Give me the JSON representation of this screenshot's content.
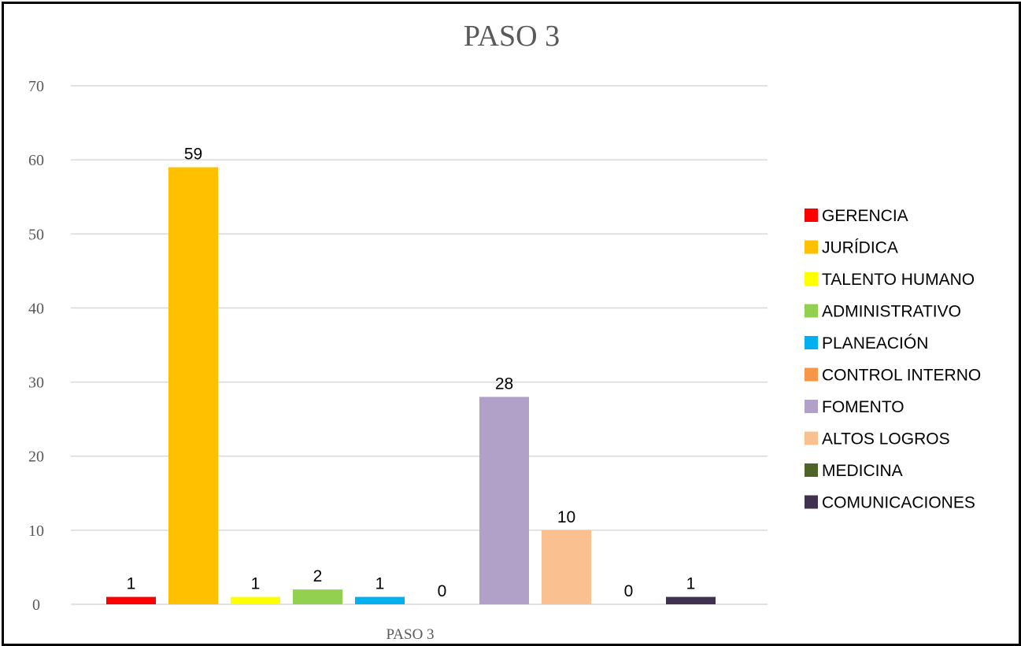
{
  "chart_data": {
    "type": "bar",
    "title": "PASO 3",
    "xlabel": "",
    "ylabel": "",
    "ylim": [
      0,
      70
    ],
    "yticks": [
      0,
      10,
      20,
      30,
      40,
      50,
      60,
      70
    ],
    "grid": true,
    "legend_position": "right",
    "category_label": "PASO 3",
    "series": [
      {
        "name": "GERENCIA",
        "value": 1,
        "color": "#FF0000"
      },
      {
        "name": "JURÍDICA",
        "value": 59,
        "color": "#FFC000"
      },
      {
        "name": "TALENTO HUMANO",
        "value": 1,
        "color": "#FFFF00"
      },
      {
        "name": "ADMINISTRATIVO",
        "value": 2,
        "color": "#92D050"
      },
      {
        "name": "PLANEACIÓN",
        "value": 1,
        "color": "#00B0F0"
      },
      {
        "name": "CONTROL INTERNO",
        "value": 0,
        "color": "#F79646"
      },
      {
        "name": "FOMENTO",
        "value": 28,
        "color": "#B1A0C7"
      },
      {
        "name": "ALTOS LOGROS",
        "value": 10,
        "color": "#FAC090"
      },
      {
        "name": "MEDICINA",
        "value": 0,
        "color": "#4F6228"
      },
      {
        "name": "COMUNICACIONES",
        "value": 1,
        "color": "#403151"
      }
    ]
  }
}
